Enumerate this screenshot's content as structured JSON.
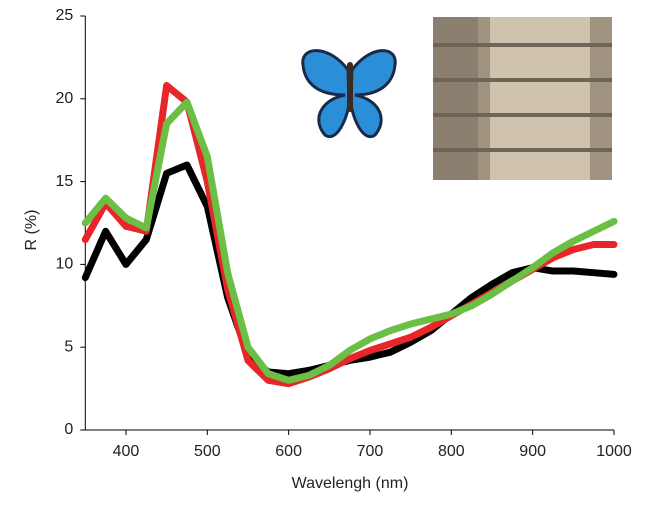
{
  "chart_data": {
    "type": "line",
    "x_label": "Wavelengh (nm)",
    "y_label": "R (%)",
    "x": [
      350,
      375,
      400,
      425,
      450,
      475,
      500,
      525,
      550,
      575,
      600,
      625,
      650,
      675,
      700,
      725,
      750,
      775,
      800,
      825,
      850,
      875,
      900,
      925,
      950,
      975,
      1000
    ],
    "series": [
      {
        "color": "#000000",
        "values": [
          9.2,
          12.0,
          10.0,
          11.5,
          15.5,
          16.0,
          13.5,
          8.0,
          4.5,
          3.5,
          3.4,
          3.6,
          3.9,
          4.2,
          4.4,
          4.7,
          5.3,
          6.0,
          7.0,
          8.0,
          8.8,
          9.5,
          9.8,
          9.6,
          9.6,
          9.5,
          9.4
        ]
      },
      {
        "color": "#e8262a",
        "values": [
          11.5,
          13.7,
          12.3,
          12.0,
          20.8,
          19.8,
          15.0,
          8.5,
          4.2,
          3.0,
          2.8,
          3.2,
          3.7,
          4.3,
          4.8,
          5.2,
          5.6,
          6.2,
          6.9,
          7.6,
          8.3,
          9.0,
          9.7,
          10.4,
          10.9,
          11.2,
          11.2
        ]
      },
      {
        "color": "#6cbf45",
        "values": [
          12.5,
          14.0,
          12.8,
          12.2,
          18.5,
          19.8,
          16.5,
          9.5,
          5.0,
          3.4,
          3.0,
          3.3,
          3.9,
          4.8,
          5.5,
          6.0,
          6.4,
          6.7,
          7.0,
          7.5,
          8.2,
          9.0,
          9.8,
          10.7,
          11.4,
          12.0,
          12.6
        ]
      }
    ],
    "xlim": [
      350,
      1000
    ],
    "xticks": [
      400,
      500,
      600,
      700,
      800,
      900,
      1000
    ],
    "ylim": [
      0,
      25
    ],
    "yticks": [
      0,
      5,
      10,
      15,
      20,
      25
    ]
  }
}
